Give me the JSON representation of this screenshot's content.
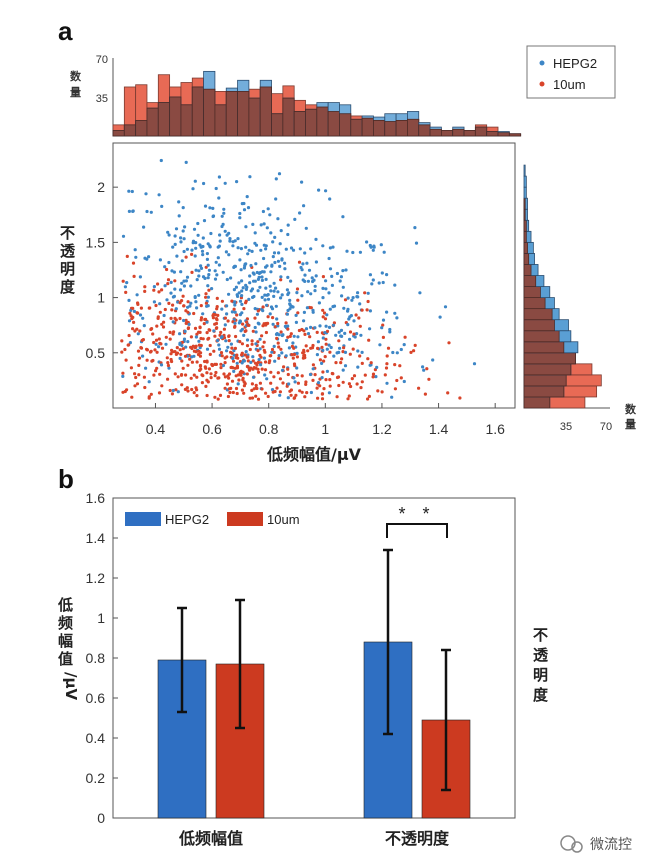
{
  "figure": {
    "panel_a_letter": "a",
    "panel_b_letter": "b",
    "watermark": "微流控",
    "colors": {
      "hepg2": "#3d86c6",
      "um10": "#d9442a",
      "hist_overlap": "#8a4a42",
      "hist_hepg2": "#5a9fd4",
      "hist_10um": "#e86a55",
      "bar_hepg2": "#2f6fc2",
      "bar_10um": "#cc3a20"
    }
  },
  "chart_data": [
    {
      "type": "scatter",
      "xlabel": "低频幅值/μV",
      "ylabel": "不透明度",
      "xlim": [
        0.25,
        1.67
      ],
      "ylim": [
        0,
        2.4
      ],
      "x_ticks": [
        "0.4",
        "0.6",
        "0.8",
        "1",
        "1.2",
        "1.4",
        "1.6"
      ],
      "x_tick_values": [
        0.4,
        0.6,
        0.8,
        1.0,
        1.2,
        1.4,
        1.6
      ],
      "y_ticks": [
        "0.5",
        "1",
        "1.5",
        "2"
      ],
      "y_tick_values": [
        0.5,
        1.0,
        1.5,
        2.0
      ],
      "legend_position": "top-right",
      "series": [
        {
          "name": "HEPG2",
          "color_key": "hepg2",
          "marker": "dot",
          "approx_center": {
            "x": 0.75,
            "y": 1.0
          },
          "approx_spread": {
            "x": 0.28,
            "y": 0.48
          },
          "n_points": 700
        },
        {
          "name": "10um",
          "color_key": "um10",
          "marker": "dot",
          "approx_center": {
            "x": 0.65,
            "y": 0.48
          },
          "approx_spread": {
            "x": 0.3,
            "y": 0.32
          },
          "n_points": 750
        }
      ]
    },
    {
      "type": "bar",
      "subtype": "histogram",
      "axis": "x (top marginal of 低频幅值)",
      "ylabel": "数量",
      "ylim": [
        0,
        70
      ],
      "y_ticks": [
        "35",
        "70"
      ],
      "bin_start": 0.25,
      "bin_width": 0.04,
      "series": [
        {
          "name": "HEPG2",
          "values": [
            5,
            10,
            14,
            25,
            30,
            35,
            28,
            44,
            58,
            28,
            43,
            50,
            34,
            50,
            20,
            34,
            22,
            24,
            30,
            30,
            28,
            15,
            18,
            17,
            20,
            20,
            22,
            12,
            8,
            5,
            8,
            5,
            8,
            4,
            4,
            2
          ]
        },
        {
          "name": "10um",
          "values": [
            10,
            44,
            46,
            30,
            55,
            44,
            48,
            52,
            42,
            40,
            40,
            40,
            42,
            44,
            38,
            45,
            32,
            28,
            26,
            22,
            20,
            18,
            16,
            14,
            13,
            14,
            15,
            10,
            6,
            5,
            6,
            5,
            10,
            8,
            3,
            2
          ]
        }
      ]
    },
    {
      "type": "bar",
      "subtype": "histogram",
      "axis": "y (right marginal of 不透明度)",
      "xlabel": "数量",
      "xlim": [
        0,
        70
      ],
      "x_ticks": [
        "35",
        "70"
      ],
      "bin_start": 0.0,
      "bin_width": 0.1,
      "series": [
        {
          "name": "HEPG2",
          "values": [
            22,
            34,
            36,
            40,
            44,
            46,
            40,
            38,
            30,
            26,
            22,
            17,
            12,
            9,
            8,
            6,
            4,
            3,
            3,
            2,
            2,
            1,
            0,
            0
          ]
        },
        {
          "name": "10um",
          "values": [
            52,
            62,
            66,
            58,
            44,
            34,
            30,
            26,
            24,
            18,
            14,
            10,
            6,
            4,
            3,
            2,
            2,
            1,
            1,
            0,
            0,
            0,
            0,
            0
          ]
        }
      ]
    },
    {
      "type": "bar",
      "categories": [
        "低频幅值",
        "不透明度"
      ],
      "ylabel": "低频幅值/μV",
      "ylabel_right": "不透明度",
      "ylim": [
        0,
        1.6
      ],
      "y_ticks": [
        "0",
        "0.2",
        "0.4",
        "0.6",
        "0.8",
        "1",
        "1.2",
        "1.4",
        "1.6"
      ],
      "y_tick_values": [
        0,
        0.2,
        0.4,
        0.6,
        0.8,
        1.0,
        1.2,
        1.4,
        1.6
      ],
      "legend_position": "top-left",
      "series": [
        {
          "name": "HEPG2",
          "values": [
            0.79,
            0.88
          ],
          "error": [
            0.26,
            0.46
          ]
        },
        {
          "name": "10um",
          "values": [
            0.77,
            0.49
          ],
          "error": [
            0.32,
            0.35
          ]
        }
      ],
      "annotations": [
        {
          "text": "* *",
          "between": "不透明度 HEPG2 and 10um"
        }
      ]
    }
  ]
}
